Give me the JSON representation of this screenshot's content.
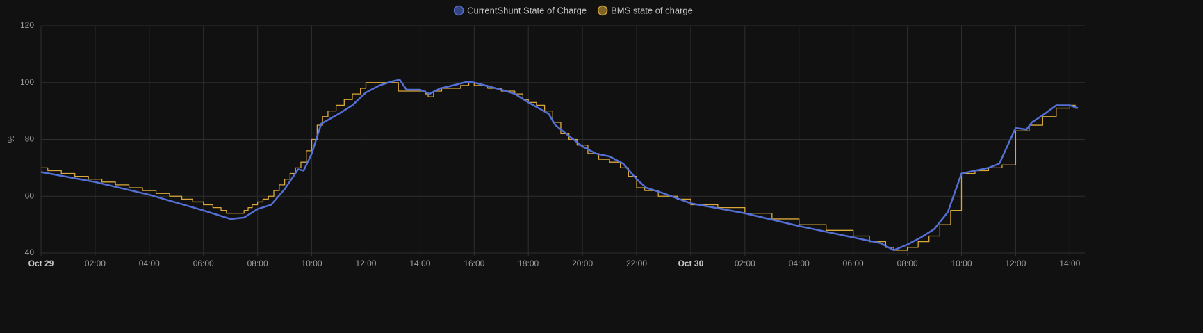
{
  "chart_data": {
    "type": "line",
    "y_label": "%",
    "xlim": [
      0,
      38.3
    ],
    "xticks": [
      {
        "value": 0,
        "label": "Oct 29"
      },
      {
        "value": 2,
        "label": "02:00"
      },
      {
        "value": 4,
        "label": "04:00"
      },
      {
        "value": 6,
        "label": "06:00"
      },
      {
        "value": 8,
        "label": "08:00"
      },
      {
        "value": 10,
        "label": "10:00"
      },
      {
        "value": 12,
        "label": "12:00"
      },
      {
        "value": 14,
        "label": "14:00"
      },
      {
        "value": 16,
        "label": "16:00"
      },
      {
        "value": 18,
        "label": "18:00"
      },
      {
        "value": 20,
        "label": "20:00"
      },
      {
        "value": 22,
        "label": "22:00"
      },
      {
        "value": 24,
        "label": "Oct 30"
      },
      {
        "value": 26,
        "label": "02:00"
      },
      {
        "value": 28,
        "label": "04:00"
      },
      {
        "value": 30,
        "label": "06:00"
      },
      {
        "value": 32,
        "label": "08:00"
      },
      {
        "value": 34,
        "label": "10:00"
      },
      {
        "value": 36,
        "label": "12:00"
      },
      {
        "value": 38,
        "label": "14:00"
      }
    ],
    "ylim": [
      40,
      120
    ],
    "yticks": [
      40,
      60,
      80,
      100,
      120
    ],
    "grid": true,
    "legend": "top",
    "series": [
      {
        "name": "CurrentShunt State of Charge",
        "color": "#5470d6",
        "step": false,
        "x": [
          0,
          2,
          4,
          6,
          7,
          7.5,
          8,
          8.5,
          9,
          9.5,
          9.7,
          10,
          10.35,
          11,
          11.5,
          12,
          12.5,
          13,
          13.25,
          13.5,
          14,
          14.35,
          14.75,
          15,
          15.75,
          16,
          17,
          17.5,
          18,
          18.75,
          19,
          20,
          20.5,
          21,
          21.5,
          22,
          22.35,
          23,
          24,
          26,
          28,
          30,
          31,
          31.5,
          32,
          32.5,
          33,
          33.5,
          34,
          35,
          35.4,
          36,
          36.4,
          36.6,
          37,
          37.5,
          38,
          38.3
        ],
        "values": [
          68.5,
          65,
          60.5,
          55,
          52,
          52.5,
          55.5,
          57,
          62.5,
          69.5,
          69,
          75,
          85.5,
          89,
          92,
          96.5,
          99,
          100.5,
          101,
          97.5,
          97.5,
          96,
          98,
          98.5,
          100.3,
          100,
          97.5,
          96,
          93,
          89,
          85,
          77.5,
          75,
          74,
          71.5,
          66,
          63,
          61,
          57.5,
          54,
          49.5,
          45.5,
          43.5,
          41,
          43,
          45.5,
          48.5,
          54.5,
          68,
          70,
          71.5,
          84,
          83.5,
          86,
          88.5,
          92,
          92,
          91
        ]
      },
      {
        "name": "BMS state of charge",
        "color": "#d9a83a",
        "step": true,
        "x": [
          0,
          0.25,
          0.75,
          1.25,
          1.75,
          2.25,
          2.75,
          3.25,
          3.75,
          4.25,
          4.75,
          5.2,
          5.6,
          6,
          6.35,
          6.65,
          6.85,
          7.5,
          7.65,
          7.8,
          8,
          8.2,
          8.4,
          8.6,
          8.8,
          9,
          9.2,
          9.4,
          9.6,
          9.8,
          10,
          10.2,
          10.4,
          10.6,
          10.9,
          11.2,
          11.5,
          11.8,
          12,
          13.2,
          14.2,
          14.3,
          14.5,
          14.8,
          15.5,
          15.8,
          16,
          16.5,
          17,
          17.5,
          17.8,
          18,
          18.3,
          18.6,
          18.9,
          19.2,
          19.5,
          19.8,
          20.2,
          20.6,
          21,
          21.4,
          21.7,
          22,
          22.3,
          22.8,
          23.5,
          24,
          25,
          26,
          27,
          28,
          29,
          30,
          30.6,
          31.2,
          31.5,
          32,
          32.4,
          32.8,
          33.2,
          33.6,
          34,
          34.5,
          35,
          35.5,
          36,
          36.5,
          37,
          37.5,
          38,
          38.2
        ],
        "values": [
          70,
          69,
          68,
          67,
          66,
          65,
          64,
          63,
          62,
          61,
          60,
          59,
          58,
          57,
          56,
          55,
          54,
          55,
          56,
          57,
          58,
          59,
          60,
          62,
          64,
          66,
          68,
          70,
          72,
          76,
          80,
          85,
          88,
          90,
          92,
          94,
          96,
          98,
          100,
          97,
          96,
          95,
          97,
          98,
          99,
          100,
          99,
          98,
          97,
          96,
          94,
          93,
          92,
          90,
          86,
          82,
          80,
          78,
          75,
          73,
          72,
          70,
          67,
          63,
          62,
          60,
          59,
          57,
          56,
          54,
          52,
          50,
          48,
          46,
          44,
          42,
          41,
          42,
          44,
          46,
          50,
          55,
          68,
          69,
          70,
          71,
          83,
          85,
          88,
          91,
          92,
          91
        ]
      }
    ]
  }
}
